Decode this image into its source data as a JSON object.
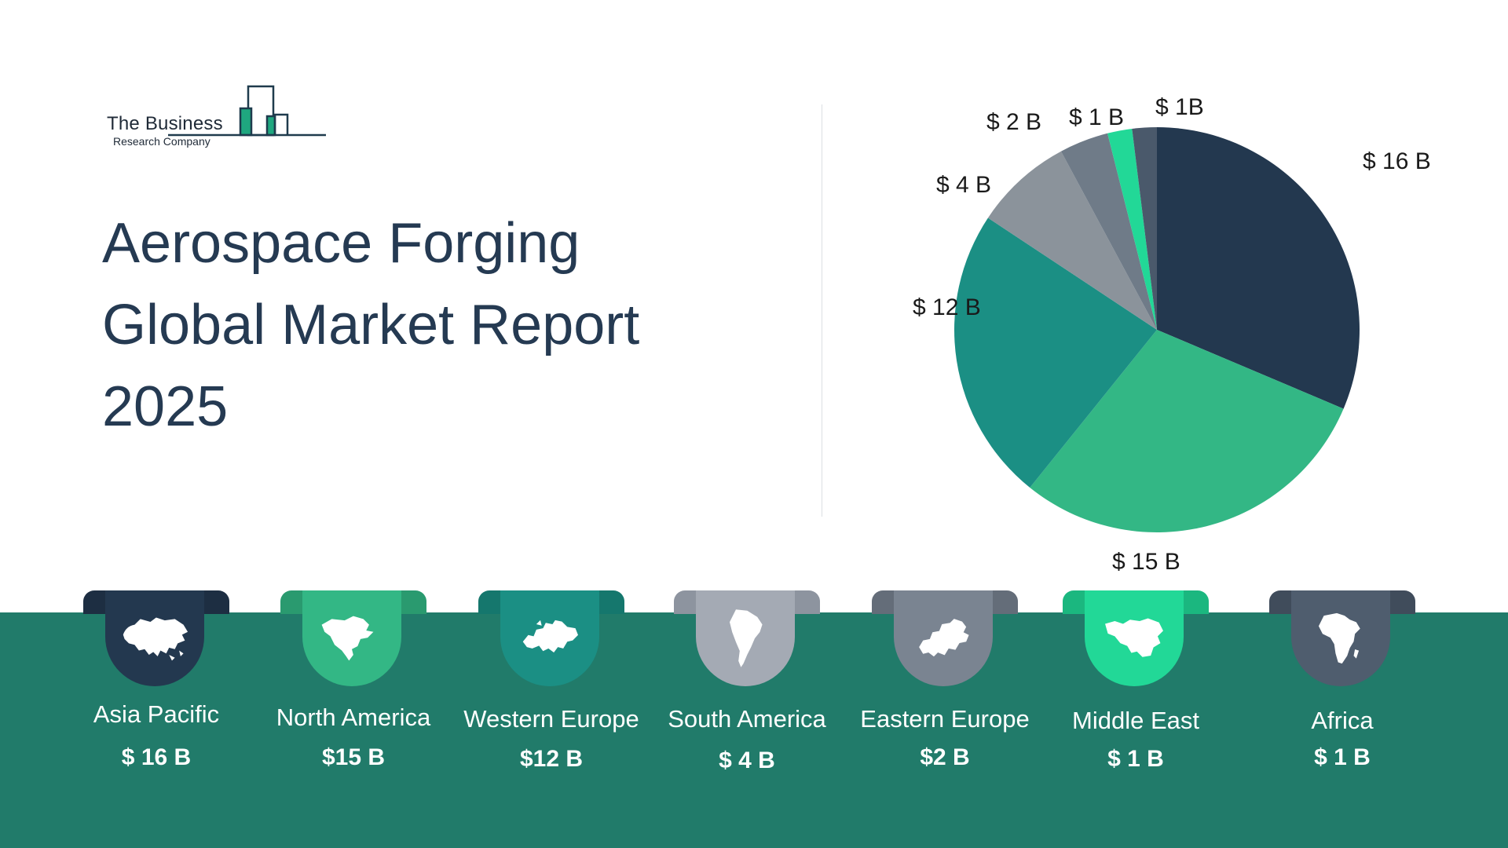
{
  "logo": {
    "line1": "The Business",
    "line2": "Research Company"
  },
  "title_lines": [
    "Aerospace Forging",
    "Global Market Report",
    "2025"
  ],
  "chart_data": {
    "type": "pie",
    "slices": [
      {
        "name": "Asia Pacific",
        "value": 16,
        "label": "$ 16 B",
        "color": "#23384f"
      },
      {
        "name": "North America",
        "value": 15,
        "label": "$ 15 B",
        "color": "#33b785"
      },
      {
        "name": "Western Europe",
        "value": 12,
        "label": "$ 12 B",
        "color": "#1b8f84"
      },
      {
        "name": "South America",
        "value": 4,
        "label": "$ 4 B",
        "color": "#8b939b"
      },
      {
        "name": "Eastern Europe",
        "value": 2,
        "label": "$ 2 B",
        "color": "#6f7b88"
      },
      {
        "name": "Middle East",
        "value": 1,
        "label": "$ 1 B",
        "color": "#22d897"
      },
      {
        "name": "Africa",
        "value": 1,
        "label": "$ 1B",
        "color": "#4a596b"
      }
    ],
    "start": "12 o'clock",
    "direction": "clockwise"
  },
  "regions": [
    {
      "name": "Asia Pacific",
      "value": "$ 16 B",
      "color": "#23384f",
      "tab_color": "#1d2e42",
      "icon": "asia-map-icon"
    },
    {
      "name": "North America",
      "value": "$15 B",
      "color": "#33b785",
      "tab_color": "#2a9a6f",
      "icon": "north-america-map-icon"
    },
    {
      "name": "Western Europe",
      "value": "$12 B",
      "color": "#1b8f84",
      "tab_color": "#15776d",
      "icon": "western-europe-map-icon"
    },
    {
      "name": "South America",
      "value": "$ 4 B",
      "color": "#a4aab4",
      "tab_color": "#8d949f",
      "icon": "south-america-map-icon"
    },
    {
      "name": "Eastern Europe",
      "value": "$2 B",
      "color": "#7a8491",
      "tab_color": "#646d79",
      "icon": "eastern-europe-map-icon"
    },
    {
      "name": "Middle East",
      "value": "$ 1 B",
      "color": "#22d897",
      "tab_color": "#1bb77f",
      "icon": "middle-east-map-icon"
    },
    {
      "name": "Africa",
      "value": "$ 1 B",
      "color": "#4f5d6e",
      "tab_color": "#404c5b",
      "icon": "africa-map-icon"
    }
  ]
}
